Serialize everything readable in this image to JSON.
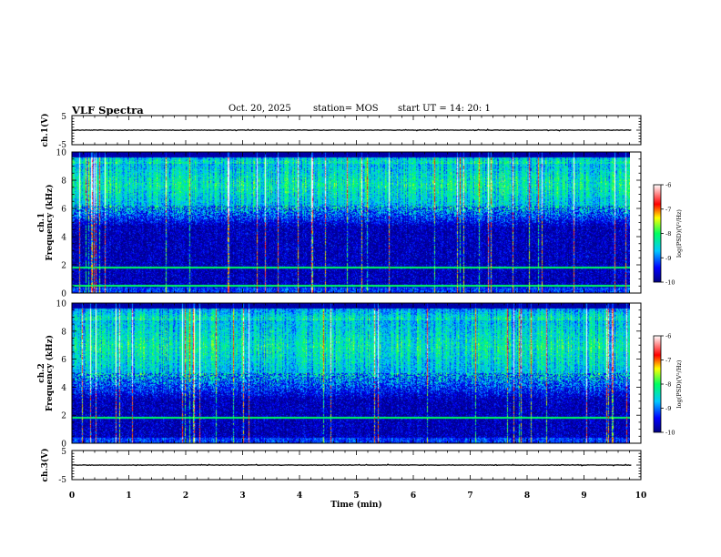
{
  "header": {
    "title": "VLF Spectra",
    "date": "Oct. 20, 2025",
    "station": "station= MOS",
    "start_ut": "start UT =   14: 20: 1"
  },
  "chart_data": [
    {
      "type": "line",
      "panel": "ch.1 waveform",
      "ylabel": "ch.1(V)",
      "ylim": [
        -5,
        5
      ],
      "yticks": [
        "5",
        "-5"
      ],
      "series": [
        {
          "x_min": [
            0,
            9.83
          ],
          "y": [
            0,
            0
          ]
        }
      ]
    },
    {
      "type": "heatmap",
      "panel": "ch.1 spectrogram",
      "ylabel_top": "ch.1",
      "ylabel": "Frequency (kHz)",
      "ylim": [
        0,
        10
      ],
      "yticks": [
        "0",
        "2",
        "4",
        "6",
        "8",
        "10"
      ],
      "x_range_min": [
        0,
        9.83
      ],
      "band_kHz": [
        6.2,
        9.2
      ],
      "lines_kHz": [
        1.8,
        0.5
      ],
      "colorbar": {
        "label": "log(PSD)(V²/Hz)",
        "ticks": [
          "-6",
          "-7",
          "-8",
          "-9",
          "-10"
        ],
        "range": [
          -10,
          -6
        ]
      }
    },
    {
      "type": "heatmap",
      "panel": "ch.2 spectrogram",
      "ylabel_top": "ch.2",
      "ylabel": "Frequency (kHz)",
      "ylim": [
        0,
        10
      ],
      "yticks": [
        "0",
        "2",
        "4",
        "6",
        "8",
        "10"
      ],
      "x_range_min": [
        0,
        9.83
      ],
      "band_kHz": [
        5.0,
        8.8
      ],
      "lines_kHz": [
        1.8
      ],
      "colorbar": {
        "label": "log(PSD)(V²/Hz)",
        "ticks": [
          "-6",
          "-7",
          "-8",
          "-9",
          "-10"
        ],
        "range": [
          -10,
          -6
        ]
      }
    },
    {
      "type": "line",
      "panel": "ch.3 waveform",
      "ylabel": "ch.3(V)",
      "ylim": [
        -5,
        5
      ],
      "yticks": [
        "5",
        "-5"
      ],
      "xlabel": "Time (min)",
      "xlim": [
        0,
        10
      ],
      "xticks": [
        "0",
        "1",
        "2",
        "3",
        "4",
        "5",
        "6",
        "7",
        "8",
        "9",
        "10"
      ],
      "series": [
        {
          "x_min": [
            0,
            9.83
          ],
          "y": [
            0,
            0
          ]
        }
      ]
    }
  ]
}
